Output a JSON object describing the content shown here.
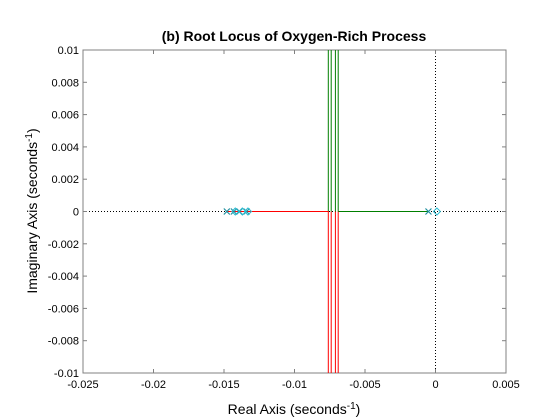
{
  "chart_data": {
    "type": "line",
    "title": "(b) Root Locus of Oxygen-Rich Process",
    "xlabel": {
      "text": "Real Axis (seconds",
      "sup": "-1",
      "close": ")"
    },
    "ylabel": {
      "text": "Imaginary Axis (seconds",
      "sup": "-1",
      "close": ")"
    },
    "xlim": [
      -0.025,
      0.005
    ],
    "ylim": [
      -0.01,
      0.01
    ],
    "xticks": [
      -0.025,
      -0.02,
      -0.015,
      -0.01,
      -0.005,
      0,
      0.005
    ],
    "xtick_labels": [
      "-0.025",
      "-0.02",
      "-0.015",
      "-0.01",
      "-0.005",
      "0",
      "0.005"
    ],
    "yticks": [
      0.01,
      0.008,
      0.006,
      0.004,
      0.002,
      0,
      -0.002,
      -0.004,
      -0.006,
      -0.008,
      -0.01
    ],
    "ytick_labels": [
      "0.01",
      "0.008",
      "0.006",
      "0.004",
      "0.002",
      "0",
      "-0.002",
      "-0.004",
      "-0.006",
      "-0.008",
      "-0.01"
    ],
    "grid": false,
    "colors": {
      "upper": "#007f00",
      "lower": "#ff0000",
      "poles": "#1f8f9f",
      "zeros": "#2bbbd0",
      "axis": "#808080"
    },
    "series": [
      {
        "color": "#007f00",
        "points": [
          [
            -0.0134,
            0
          ],
          [
            -0.0076,
            0
          ],
          [
            -0.0076,
            0.01
          ]
        ]
      },
      {
        "color": "#007f00",
        "points": [
          [
            -0.0074,
            0
          ],
          [
            -0.0074,
            0.01
          ]
        ]
      },
      {
        "color": "#007f00",
        "points": [
          [
            -0.0071,
            0
          ],
          [
            -0.0071,
            0.01
          ]
        ]
      },
      {
        "color": "#007f00",
        "points": [
          [
            -0.0069,
            0
          ],
          [
            -0.0069,
            0.01
          ]
        ]
      },
      {
        "color": "#007f00",
        "points": [
          [
            -0.0005,
            0
          ],
          [
            -0.0069,
            0
          ]
        ]
      },
      {
        "color": "#ff0000",
        "points": [
          [
            -0.0148,
            0
          ],
          [
            -0.0076,
            0
          ],
          [
            -0.0076,
            -0.01
          ]
        ]
      },
      {
        "color": "#ff0000",
        "points": [
          [
            -0.0074,
            0
          ],
          [
            -0.0074,
            -0.01
          ]
        ]
      },
      {
        "color": "#ff0000",
        "points": [
          [
            -0.0071,
            0
          ],
          [
            -0.0071,
            -0.01
          ]
        ]
      },
      {
        "color": "#ff0000",
        "points": [
          [
            -0.0069,
            0
          ],
          [
            -0.0069,
            -0.01
          ]
        ]
      }
    ],
    "poles": [
      [
        -0.0148,
        0
      ],
      [
        -0.0143,
        0
      ],
      [
        -0.0139,
        0
      ],
      [
        -0.0134,
        0
      ],
      [
        -0.0005,
        0
      ]
    ],
    "zeros": [
      [
        -0.0142,
        0
      ],
      [
        -0.0137,
        0
      ],
      [
        -0.0133,
        0
      ],
      [
        0.0001,
        0
      ]
    ]
  }
}
